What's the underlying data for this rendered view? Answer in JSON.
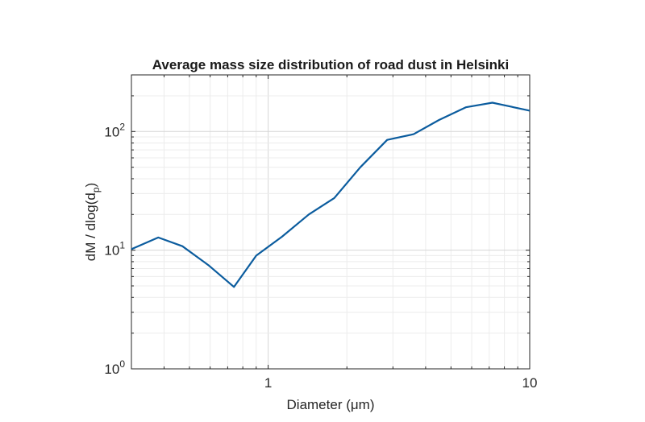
{
  "chart_data": {
    "type": "line",
    "title": "Average mass size distribution of road dust in Helsinki",
    "xlabel": "Diameter (μm)",
    "ylabel": "dM / dlog(dp)",
    "x_scale": "log",
    "y_scale": "log",
    "xlim": [
      0.3,
      10
    ],
    "ylim": [
      1,
      300
    ],
    "grid": true,
    "line_color": "#0b5c9e",
    "x_ticks": [
      {
        "value": 1,
        "label": "1"
      },
      {
        "value": 10,
        "label": "10"
      }
    ],
    "y_ticks": [
      {
        "value": 1,
        "base": "10",
        "exp": "0"
      },
      {
        "value": 10,
        "base": "10",
        "exp": "1"
      },
      {
        "value": 100,
        "base": "10",
        "exp": "2"
      }
    ],
    "series": [
      {
        "x": [
          0.3,
          0.38,
          0.47,
          0.59,
          0.74,
          0.9,
          1.13,
          1.43,
          1.79,
          2.25,
          2.85,
          3.6,
          4.5,
          5.7,
          7.2,
          10
        ],
        "y": [
          10.2,
          12.8,
          10.8,
          7.5,
          4.9,
          9.0,
          13.0,
          20.0,
          27.5,
          50.0,
          85.0,
          95.0,
          125.0,
          160.0,
          175.0,
          150.0
        ]
      }
    ]
  }
}
